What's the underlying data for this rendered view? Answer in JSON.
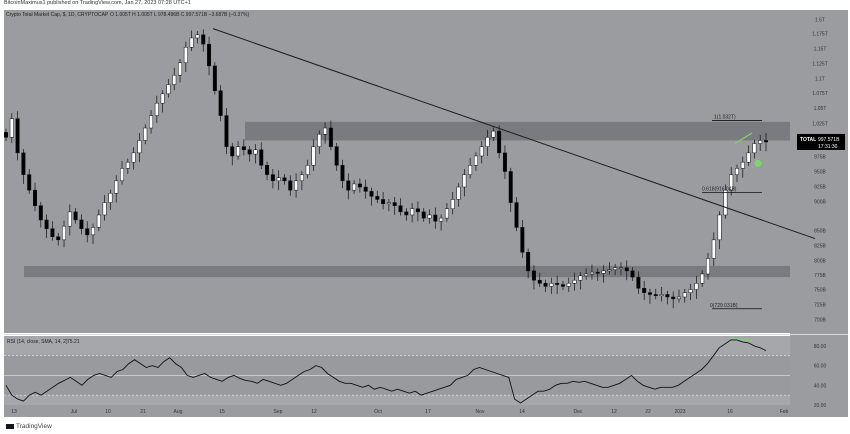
{
  "header": {
    "credit": "BitcoinMaximus1 published on TradingView.com, Jan 27, 2023 07:28 UTC+1",
    "symbol_line": "Crypto Total Market Cap, $, 1D, CRYPTOCAP",
    "ohlc": "O 1.005T  H 1.005T  L 978.496B  C 997.571B  −3.687B (−0.37%)"
  },
  "footer": {
    "brand": "TradingView"
  },
  "colors": {
    "chart_bg": "#9a9ca0",
    "panel_bg": "#a5a7ab",
    "up_candle": "#ffffff",
    "down_candle": "#000000",
    "trendline": "#1c1c1c",
    "zone": "#74767a",
    "highlight_green": "#7bd868",
    "price_label_bg": "#000000"
  },
  "price_axis": {
    "ticks": [
      "1.5T",
      "1.175T",
      "1.15T",
      "1.125T",
      "1.1T",
      "1.075T",
      "1.05T",
      "1.025T",
      "975B",
      "950B",
      "925B",
      "900B",
      "850B",
      "825B",
      "800B",
      "775B",
      "750B",
      "725B",
      "700B"
    ]
  },
  "x_axis": {
    "ticks": [
      "13",
      "Jul",
      "10",
      "21",
      "Aug",
      "15",
      "Sep",
      "12",
      "Oct",
      "17",
      "Nov",
      "14",
      "Dec",
      "12",
      "22",
      "2023",
      "16",
      "Feb"
    ]
  },
  "current_price": {
    "label": "TOTAL",
    "value": "997.571B",
    "countdown": "17:31:30"
  },
  "fib_labels": {
    "top": "1(1.032T)",
    "mid": "0.618(916.04B)",
    "bottom": "0(729.031B)"
  },
  "rsi": {
    "legend": "RSI (14, close, SMA, 14, 2)",
    "value": "75.21",
    "ticks": [
      "80.00",
      "60.00",
      "40.00",
      "20.00"
    ]
  },
  "chart_data": [
    {
      "type": "candlestick",
      "title": "Crypto Total Market Cap, $, 1D, CRYPTOCAP",
      "ylabel": "",
      "ylim": [
        690,
        1210
      ],
      "x_ticks": [
        "13",
        "Jul",
        "10",
        "21",
        "Aug",
        "15",
        "Sep",
        "12",
        "Oct",
        "17",
        "Nov",
        "14",
        "Dec",
        "12",
        "22",
        "2023",
        "16",
        "Feb"
      ],
      "close_series_approx": [
        1005,
        1035,
        980,
        945,
        920,
        895,
        872,
        858,
        845,
        840,
        862,
        885,
        872,
        858,
        848,
        860,
        880,
        900,
        915,
        935,
        955,
        965,
        980,
        1000,
        1020,
        1040,
        1060,
        1075,
        1090,
        1105,
        1125,
        1150,
        1165,
        1170,
        1155,
        1120,
        1080,
        1040,
        990,
        975,
        990,
        985,
        978,
        985,
        960,
        945,
        935,
        940,
        935,
        920,
        935,
        945,
        960,
        990,
        1010,
        1020,
        990,
        960,
        935,
        920,
        930,
        925,
        918,
        910,
        905,
        898,
        900,
        895,
        885,
        880,
        890,
        885,
        875,
        880,
        870,
        875,
        890,
        905,
        925,
        945,
        960,
        975,
        990,
        1005,
        1015,
        980,
        950,
        900,
        860,
        820,
        790,
        775,
        770,
        765,
        770,
        768,
        765,
        770,
        775,
        782,
        785,
        788,
        786,
        790,
        792,
        795,
        795,
        790,
        780,
        762,
        755,
        752,
        750,
        752,
        748,
        745,
        748,
        755,
        760,
        770,
        785,
        810,
        840,
        880,
        920,
        945,
        955,
        965,
        980,
        995,
        1000,
        997.571
      ],
      "resistance_zone": [
        1000,
        1030
      ],
      "support_zone": [
        780,
        798
      ],
      "descending_trendline": {
        "from": [
          "Aug 11",
          1180
        ],
        "to": [
          "Feb 3",
          842
        ]
      },
      "fib_retracement": {
        "0": 729.031,
        "0.618": 916.04,
        "1": 1032
      },
      "last_close": 997.571
    },
    {
      "type": "line",
      "title": "RSI (14, close, SMA, 14, 2)",
      "ylim": [
        20,
        90
      ],
      "levels": [
        30,
        50,
        70
      ],
      "values_approx": [
        40,
        30,
        26,
        24,
        30,
        33,
        30,
        34,
        38,
        42,
        45,
        48,
        44,
        40,
        46,
        50,
        52,
        50,
        48,
        54,
        56,
        62,
        66,
        62,
        58,
        60,
        58,
        64,
        68,
        62,
        58,
        50,
        48,
        50,
        52,
        48,
        46,
        44,
        48,
        50,
        47,
        45,
        44,
        42,
        46,
        44,
        42,
        40,
        42,
        46,
        50,
        54,
        56,
        60,
        58,
        52,
        48,
        44,
        42,
        42,
        40,
        38,
        40,
        36,
        38,
        36,
        34,
        36,
        34,
        32,
        34,
        30,
        32,
        34,
        36,
        38,
        40,
        46,
        48,
        50,
        56,
        58,
        56,
        54,
        52,
        50,
        48,
        26,
        22,
        26,
        30,
        34,
        34,
        36,
        40,
        42,
        42,
        44,
        43,
        44,
        42,
        40,
        38,
        38,
        40,
        42,
        46,
        50,
        44,
        40,
        38,
        36,
        38,
        38,
        38,
        40,
        44,
        48,
        52,
        56,
        62,
        70,
        78,
        82,
        86,
        86,
        84,
        83,
        80,
        78,
        75.21
      ],
      "last_value": 75.21
    }
  ]
}
